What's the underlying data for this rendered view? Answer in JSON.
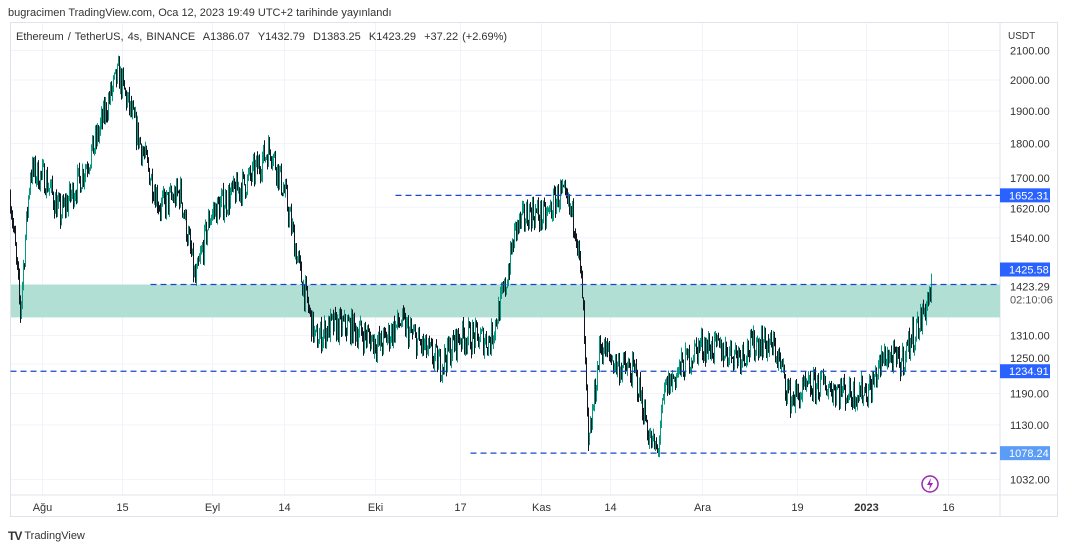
{
  "header": {
    "published": "bugracimen TradingView.com, Oca 12, 2023 19:49 UTC+2 tarihinde yayınlandı"
  },
  "legend": {
    "symbol": "Ethereum / TetherUS, 4s, BINANCE",
    "open": "A1386.07",
    "high": "Y1432.79",
    "low": "D1383.25",
    "close": "K1423.29",
    "change": "+37.22 (+2.69%)"
  },
  "footer": {
    "brand": "TradingView",
    "logo": "TV"
  },
  "chart_data": {
    "type": "candlestick",
    "title": "Ethereum / TetherUS, 4s, BINANCE",
    "currency": "USDT",
    "scale": "log",
    "y_ticks": [
      "2100.00",
      "2000.00",
      "1900.00",
      "1800.00",
      "1700.00",
      "1620.00",
      "1540.00",
      "1310.00",
      "1250.00",
      "1190.00",
      "1130.00",
      "1032.00"
    ],
    "x_ticks": [
      {
        "label": "Ağu",
        "bar": 32
      },
      {
        "label": "15",
        "bar": 112
      },
      {
        "label": "Eyl",
        "bar": 202
      },
      {
        "label": "14",
        "bar": 274
      },
      {
        "label": "Eki",
        "bar": 365
      },
      {
        "label": "17",
        "bar": 450
      },
      {
        "label": "Kas",
        "bar": 531
      },
      {
        "label": "14",
        "bar": 600
      },
      {
        "label": "Ara",
        "bar": 692
      },
      {
        "label": "19",
        "bar": 787
      },
      {
        "label": "2023",
        "bar": 856,
        "bold": true
      },
      {
        "label": "16",
        "bar": 938
      }
    ],
    "price_path": [
      [
        0,
        1650
      ],
      [
        10,
        1360
      ],
      [
        20,
        1720
      ],
      [
        35,
        1700
      ],
      [
        50,
        1600
      ],
      [
        70,
        1700
      ],
      [
        85,
        1800
      ],
      [
        100,
        1950
      ],
      [
        108,
        2020
      ],
      [
        120,
        1900
      ],
      [
        135,
        1750
      ],
      [
        150,
        1620
      ],
      [
        170,
        1660
      ],
      [
        185,
        1430
      ],
      [
        200,
        1600
      ],
      [
        220,
        1650
      ],
      [
        240,
        1700
      ],
      [
        260,
        1790
      ],
      [
        275,
        1650
      ],
      [
        290,
        1450
      ],
      [
        305,
        1300
      ],
      [
        320,
        1330
      ],
      [
        340,
        1330
      ],
      [
        370,
        1290
      ],
      [
        390,
        1340
      ],
      [
        410,
        1290
      ],
      [
        430,
        1250
      ],
      [
        450,
        1310
      ],
      [
        480,
        1300
      ],
      [
        495,
        1420
      ],
      [
        505,
        1560
      ],
      [
        520,
        1610
      ],
      [
        535,
        1590
      ],
      [
        550,
        1660
      ],
      [
        565,
        1580
      ],
      [
        572,
        1400
      ],
      [
        578,
        1080
      ],
      [
        590,
        1290
      ],
      [
        605,
        1250
      ],
      [
        625,
        1230
      ],
      [
        640,
        1100
      ],
      [
        647,
        1080
      ],
      [
        655,
        1200
      ],
      [
        670,
        1240
      ],
      [
        690,
        1290
      ],
      [
        710,
        1280
      ],
      [
        730,
        1270
      ],
      [
        750,
        1300
      ],
      [
        765,
        1280
      ],
      [
        780,
        1180
      ],
      [
        790,
        1190
      ],
      [
        810,
        1210
      ],
      [
        840,
        1190
      ],
      [
        860,
        1200
      ],
      [
        875,
        1270
      ],
      [
        890,
        1250
      ],
      [
        900,
        1300
      ],
      [
        910,
        1340
      ],
      [
        922,
        1423.29
      ]
    ],
    "levels": [
      {
        "price": 1652.31,
        "label": "1652.31",
        "from_bar": 385
      },
      {
        "price": 1425.58,
        "label": "1425.58",
        "from_bar": 140
      },
      {
        "price": 1234.91,
        "label": "1234.91",
        "from_bar": 0
      },
      {
        "price": 1078.24,
        "label": "1078.24",
        "from_bar": 460
      }
    ],
    "zone": {
      "top": 1425.58,
      "bottom": 1350,
      "color": "#b2dfd4"
    },
    "last_price": {
      "value": "1423.29",
      "countdown": "02:10:06"
    },
    "colors": {
      "up": "#089981",
      "down": "#131722",
      "level": "#1848cc",
      "label_bg": "#2962ff",
      "label_bg_light": "#5b9cf6"
    }
  },
  "icons": {
    "alert": "lightning-icon"
  }
}
